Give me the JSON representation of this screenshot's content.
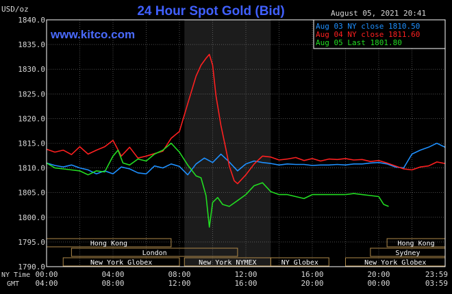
{
  "title": "24 Hour Spot Gold (Bid)",
  "unit_label": "USD/oz",
  "datetime": "August 05, 2021 20:41",
  "brand": "www.kitco.com",
  "axis_row_labels": {
    "ny": "NY Time",
    "gmt": "GMT"
  },
  "colors": {
    "background": "#000000",
    "plot_border": "#ffffff",
    "grid": "#808080",
    "shade": "#1c1c1c",
    "title": "#4060ff",
    "brand": "#4a6bff",
    "axis_text": "#d8d8d8",
    "session_box": "#b08a4a",
    "session_text": "#ffffff"
  },
  "chart_data": {
    "type": "line",
    "ylim": [
      1790,
      1840
    ],
    "yticks": [
      "1790.0",
      "1795.0",
      "1800.0",
      "1805.0",
      "1810.0",
      "1815.0",
      "1820.0",
      "1825.0",
      "1830.0",
      "1835.0",
      "1840.0"
    ],
    "xlim": [
      0,
      24
    ],
    "xticks_ny": [
      "00:00",
      "04:00",
      "08:00",
      "12:00",
      "16:00",
      "20:00",
      "23:59"
    ],
    "xticks_gmt": [
      "04:00",
      "08:00",
      "12:00",
      "16:00",
      "20:00",
      "00:00",
      "03:59"
    ],
    "shaded_hours": [
      8.3,
      13.5
    ],
    "legend": [
      {
        "label": "Aug 03 NY close 1810.50",
        "color": "#1e90ff"
      },
      {
        "label": "Aug 04 NY close 1811.60",
        "color": "#ff2020"
      },
      {
        "label": "Aug 05 Last 1801.80",
        "color": "#22dd22"
      }
    ],
    "series": [
      {
        "color": "#1e90ff",
        "x": [
          0,
          0.5,
          1,
          1.5,
          2,
          2.5,
          3,
          3.5,
          4,
          4.5,
          5,
          5.5,
          6,
          6.5,
          7,
          7.5,
          8,
          8.5,
          9,
          9.5,
          10,
          10.5,
          11,
          11.5,
          12,
          12.5,
          13,
          13.5,
          14,
          14.5,
          15,
          15.5,
          16,
          16.5,
          17,
          17.5,
          18,
          18.5,
          19,
          19.5,
          20,
          20.5,
          21,
          21.5,
          22,
          22.5,
          23,
          23.5,
          23.99
        ],
        "y": [
          1811.0,
          1810.5,
          1810.2,
          1810.6,
          1810.0,
          1809.6,
          1808.8,
          1809.4,
          1808.8,
          1810.2,
          1809.8,
          1809.0,
          1808.8,
          1810.4,
          1810.0,
          1810.8,
          1810.3,
          1808.6,
          1810.8,
          1812.0,
          1811.1,
          1812.8,
          1811.2,
          1809.4,
          1810.8,
          1811.4,
          1811.1,
          1810.9,
          1810.6,
          1810.8,
          1810.7,
          1810.7,
          1810.5,
          1810.6,
          1810.6,
          1810.7,
          1810.6,
          1810.8,
          1810.8,
          1811.0,
          1811.1,
          1810.8,
          1810.2,
          1810.0,
          1812.8,
          1813.6,
          1814.2,
          1815.0,
          1814.2
        ]
      },
      {
        "color": "#ff2020",
        "x": [
          0,
          0.5,
          1,
          1.5,
          2,
          2.5,
          3,
          3.5,
          4,
          4.5,
          5,
          5.5,
          6,
          6.5,
          7,
          7.5,
          8,
          8.5,
          9,
          9.3,
          9.6,
          9.8,
          10,
          10.2,
          10.5,
          10.8,
          11,
          11.3,
          11.5,
          12,
          12.5,
          13,
          13.5,
          14,
          14.5,
          15,
          15.5,
          16,
          16.5,
          17,
          17.5,
          18,
          18.5,
          19,
          19.5,
          20,
          20.5,
          21,
          21.5,
          22,
          22.5,
          23,
          23.5,
          23.99
        ],
        "y": [
          1813.8,
          1813.2,
          1813.6,
          1812.7,
          1814.3,
          1812.8,
          1813.6,
          1814.3,
          1815.6,
          1812.4,
          1814.2,
          1812.0,
          1812.4,
          1812.9,
          1813.4,
          1816.0,
          1817.4,
          1823.0,
          1828.6,
          1830.8,
          1832.2,
          1833.0,
          1830.8,
          1824.6,
          1818.6,
          1813.8,
          1810.4,
          1807.4,
          1806.8,
          1808.6,
          1810.8,
          1812.4,
          1812.2,
          1811.6,
          1811.8,
          1812.1,
          1811.5,
          1811.9,
          1811.4,
          1811.8,
          1811.7,
          1811.9,
          1811.6,
          1811.7,
          1811.3,
          1811.5,
          1811.0,
          1810.4,
          1809.8,
          1809.6,
          1810.2,
          1810.4,
          1811.2,
          1810.9
        ]
      },
      {
        "color": "#22dd22",
        "x": [
          0,
          0.5,
          1,
          1.5,
          2,
          2.5,
          3,
          3.5,
          4,
          4.3,
          4.6,
          5,
          5.5,
          6,
          6.5,
          7,
          7.5,
          8,
          8.5,
          9,
          9.3,
          9.6,
          9.8,
          10,
          10.3,
          10.6,
          11,
          11.5,
          12,
          12.5,
          13,
          13.5,
          14,
          14.5,
          15,
          15.5,
          16,
          16.5,
          17,
          17.5,
          18,
          18.5,
          19,
          19.5,
          20,
          20.3,
          20.6
        ],
        "y": [
          1811.0,
          1810.0,
          1809.8,
          1809.6,
          1809.4,
          1808.6,
          1809.4,
          1809.2,
          1812.4,
          1813.6,
          1811.0,
          1810.6,
          1811.8,
          1811.4,
          1812.8,
          1813.6,
          1815.0,
          1813.2,
          1810.6,
          1808.4,
          1808.0,
          1804.4,
          1798.0,
          1803.0,
          1804.0,
          1802.6,
          1802.2,
          1803.4,
          1804.6,
          1806.4,
          1807.0,
          1805.2,
          1804.6,
          1804.6,
          1804.2,
          1803.8,
          1804.6,
          1804.6,
          1804.6,
          1804.6,
          1804.6,
          1804.8,
          1804.6,
          1804.4,
          1804.2,
          1802.6,
          1802.2
        ]
      }
    ],
    "sessions": [
      {
        "label": "Hong Kong",
        "row": 0,
        "start": 0,
        "end": 7.5
      },
      {
        "label": "Hong Kong",
        "row": 0,
        "start": 20.5,
        "end": 24
      },
      {
        "label": "Sydney",
        "row": 1,
        "start": 19.5,
        "end": 24
      },
      {
        "label": "London",
        "row": 1,
        "start": 1.5,
        "end": 11.5
      },
      {
        "label": "New York Globex",
        "row": 2,
        "start": 1,
        "end": 8.0
      },
      {
        "label": "New York NYMEX",
        "row": 2,
        "start": 8.3,
        "end": 13.5
      },
      {
        "label": "NY Globex",
        "row": 2,
        "start": 13.5,
        "end": 17.0
      },
      {
        "label": "New York Globex",
        "row": 2,
        "start": 18.0,
        "end": 24
      }
    ]
  }
}
